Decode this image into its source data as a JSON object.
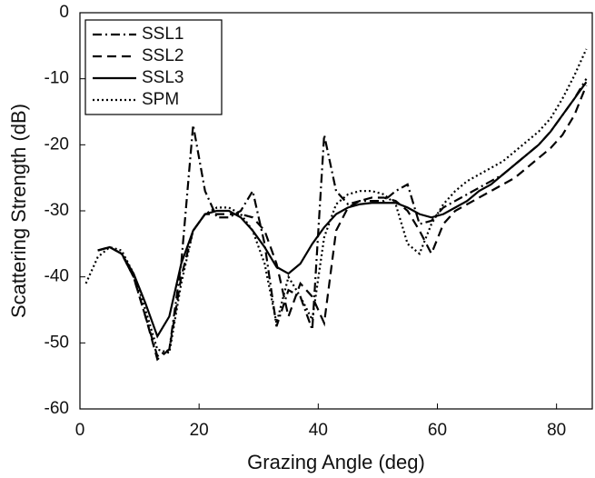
{
  "chart_data": {
    "type": "line",
    "xlabel": "Grazing Angle (deg)",
    "ylabel": "Scattering Strength (dB)",
    "x": [
      1,
      3,
      5,
      7,
      9,
      11,
      13,
      15,
      17,
      19,
      21,
      23,
      25,
      27,
      29,
      31,
      33,
      35,
      37,
      39,
      41,
      43,
      45,
      47,
      49,
      51,
      53,
      55,
      57,
      59,
      61,
      63,
      65,
      67,
      69,
      71,
      73,
      75,
      77,
      79,
      81,
      83,
      85
    ],
    "series": [
      {
        "name": "SSL1",
        "color": "#000000",
        "dash": "dashdot",
        "values": [
          null,
          -36,
          -35.5,
          -36.5,
          -40,
          -46,
          -52,
          -51,
          -38,
          -17,
          -27,
          -31,
          -31,
          -30,
          -27,
          -35,
          -47.5,
          -42,
          -43,
          -48,
          -18.5,
          -27,
          -29,
          -28.5,
          -28.5,
          -28.5,
          -27,
          -26,
          -32,
          -31.5,
          -29.5,
          -28.5,
          -27.5,
          -26.5,
          -25.5,
          -24.5,
          -23,
          -21.5,
          -20,
          -18,
          -15.5,
          -13,
          -10
        ]
      },
      {
        "name": "SSL2",
        "color": "#000000",
        "dash": "dashed",
        "values": [
          null,
          -36,
          -35.5,
          -36.5,
          -40,
          -46,
          -52.5,
          -51,
          -40,
          -33,
          -30.5,
          -30.5,
          -30.5,
          -30.5,
          -31,
          -33,
          -38,
          -46,
          -41,
          -43,
          -47,
          -33,
          -29.5,
          -28.5,
          -28,
          -28,
          -28.5,
          -30,
          -33,
          -36.5,
          -32,
          -30,
          -29,
          -28,
          -27,
          -26,
          -25,
          -23.5,
          -22,
          -20.5,
          -18.5,
          -15.5,
          -11
        ]
      },
      {
        "name": "SSL3",
        "color": "#000000",
        "dash": "solid",
        "values": [
          null,
          -36,
          -35.5,
          -36.5,
          -39.5,
          -44,
          -49,
          -46,
          -38,
          -33,
          -30.5,
          -30,
          -30,
          -31,
          -33,
          -35.5,
          -38.5,
          -39.5,
          -38,
          -35,
          -32.5,
          -30.5,
          -29.5,
          -29,
          -28.8,
          -28.8,
          -28.8,
          -29.5,
          -30.5,
          -31,
          -30.5,
          -29.5,
          -28.5,
          -27,
          -26,
          -24.5,
          -23,
          -21.5,
          -20,
          -18,
          -15.5,
          -13,
          -10.5
        ]
      },
      {
        "name": "SPM",
        "color": "#000000",
        "dash": "dotted",
        "values": [
          -41,
          -37,
          -35.5,
          -36,
          -39.5,
          -45,
          -51,
          -51.5,
          -41,
          -33,
          -30.5,
          -29.5,
          -29.5,
          -30.5,
          -33,
          -38,
          -47,
          -40,
          -43,
          -46.5,
          -34,
          -29,
          -27.5,
          -27,
          -27,
          -27.5,
          -29,
          -35,
          -36.5,
          -32,
          -29,
          -27,
          -25.5,
          -24.5,
          -23.5,
          -22.5,
          -21,
          -19.5,
          -18,
          -16,
          -13,
          -9.5,
          -5.5
        ]
      }
    ],
    "xlim": [
      0,
      86
    ],
    "ylim": [
      -60,
      0
    ],
    "xticks": [
      0,
      20,
      40,
      60,
      80
    ],
    "yticks": [
      -60,
      -50,
      -40,
      -30,
      -20,
      -10,
      0
    ],
    "legend": "top-left",
    "grid": false
  }
}
